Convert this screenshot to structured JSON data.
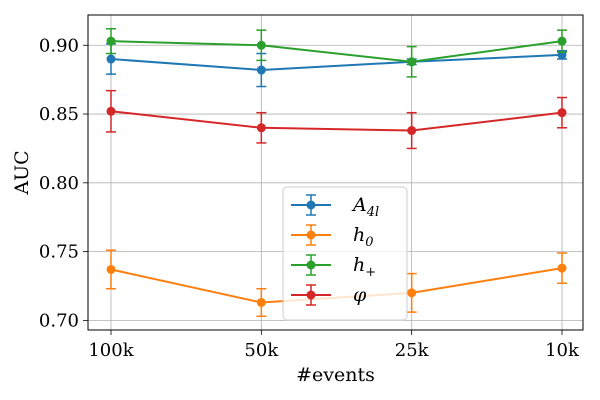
{
  "chart_data": {
    "type": "line",
    "xlabel": "#events",
    "ylabel": "AUC",
    "categories": [
      "100k",
      "50k",
      "25k",
      "10k"
    ],
    "ylim": [
      0.693,
      0.922
    ],
    "yticks": [
      0.7,
      0.75,
      0.8,
      0.85,
      0.9
    ],
    "ytick_labels": [
      "0.70",
      "0.75",
      "0.80",
      "0.85",
      "0.90"
    ],
    "grid": true,
    "legend_position": "lower-center",
    "series": [
      {
        "name": "A_4l",
        "legend_main": "A",
        "legend_sub": "4l",
        "color": "#1f77b4",
        "values": [
          0.89,
          0.882,
          0.888,
          0.893
        ],
        "errors": [
          0.011,
          0.012,
          0.002,
          0.003
        ]
      },
      {
        "name": "h_0",
        "legend_main": "h",
        "legend_sub": "0",
        "color": "#ff7f0e",
        "values": [
          0.737,
          0.713,
          0.72,
          0.738
        ],
        "errors": [
          0.014,
          0.01,
          0.014,
          0.011
        ]
      },
      {
        "name": "h_+",
        "legend_main": "h",
        "legend_sub": "+",
        "color": "#2ca02c",
        "values": [
          0.903,
          0.9,
          0.888,
          0.903
        ],
        "errors": [
          0.009,
          0.011,
          0.011,
          0.008
        ]
      },
      {
        "name": "φ",
        "legend_main": "φ",
        "legend_sub": "",
        "color": "#d62728",
        "values": [
          0.852,
          0.84,
          0.838,
          0.851
        ],
        "errors": [
          0.015,
          0.011,
          0.013,
          0.011
        ]
      }
    ]
  }
}
